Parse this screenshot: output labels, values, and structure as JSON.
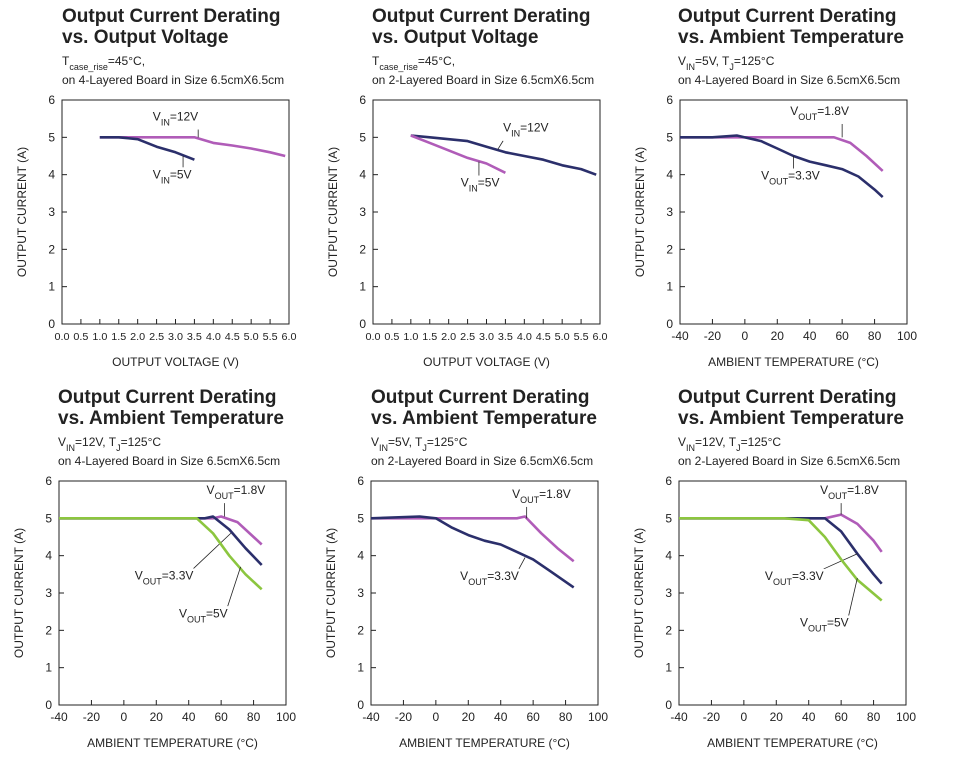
{
  "chart_data": [
    {
      "type": "line",
      "title": [
        "Output Current Derating",
        "vs. Output Voltage"
      ],
      "subtitle": [
        [
          "T",
          "case_rise",
          "=45°C,"
        ],
        "on 4-Layered Board in Size 6.5cmX6.5cm"
      ],
      "xlabel": "OUTPUT VOLTAGE (V)",
      "ylabel": "OUTPUT CURRENT (A)",
      "xlim": [
        0,
        6
      ],
      "ylim": [
        0,
        6
      ],
      "xticks": [
        {
          "value": 0,
          "label": "0.0"
        },
        0.5,
        {
          "value": 1,
          "label": "1.0"
        },
        1.5,
        {
          "value": 2,
          "label": "2.0"
        },
        2.5,
        {
          "value": 3,
          "label": "3.0"
        },
        3.5,
        {
          "value": 4,
          "label": "4.0"
        },
        4.5,
        {
          "value": 5,
          "label": "5.0"
        },
        5.5,
        {
          "value": 6,
          "label": "6.0"
        }
      ],
      "yticks": [
        0,
        1,
        2,
        3,
        4,
        5,
        6
      ],
      "series": [
        {
          "name": [
            "V",
            "IN",
            "=12V"
          ],
          "color": "#b05cb8",
          "x": [
            1.0,
            1.5,
            2.0,
            2.5,
            3.0,
            3.5,
            4.0,
            4.5,
            5.0,
            5.5,
            5.9
          ],
          "values": [
            5,
            5,
            5,
            5,
            5,
            5,
            4.85,
            4.78,
            4.7,
            4.6,
            4.5
          ]
        },
        {
          "name": [
            "V",
            "IN",
            "=5V"
          ],
          "color": "#2b2f6b",
          "x": [
            1.0,
            1.5,
            2.0,
            2.5,
            3.0,
            3.5
          ],
          "values": [
            5,
            5,
            4.95,
            4.75,
            4.6,
            4.4
          ]
        }
      ]
    },
    {
      "type": "line",
      "title": [
        "Output Current Derating",
        "vs. Output Voltage"
      ],
      "subtitle": [
        [
          "T",
          "case_rise",
          "=45°C,"
        ],
        "on 2-Layered Board in Size 6.5cmX6.5cm"
      ],
      "xlabel": "OUTPUT VOLTAGE (V)",
      "ylabel": "OUTPUT CURRENT (A)",
      "xlim": [
        0,
        6
      ],
      "ylim": [
        0,
        6
      ],
      "xticks": [
        {
          "value": 0,
          "label": "0.0"
        },
        0.5,
        {
          "value": 1,
          "label": "1.0"
        },
        1.5,
        {
          "value": 2,
          "label": "2.0"
        },
        2.5,
        {
          "value": 3,
          "label": "3.0"
        },
        3.5,
        {
          "value": 4,
          "label": "4.0"
        },
        4.5,
        {
          "value": 5,
          "label": "5.0"
        },
        5.5,
        {
          "value": 6,
          "label": "6.0"
        }
      ],
      "yticks": [
        0,
        1,
        2,
        3,
        4,
        5,
        6
      ],
      "series": [
        {
          "name": [
            "V",
            "IN",
            "=12V"
          ],
          "color": "#2b2f6b",
          "x": [
            1.0,
            1.5,
            2.0,
            2.5,
            3.0,
            3.5,
            4.0,
            4.5,
            5.0,
            5.5,
            5.9
          ],
          "values": [
            5.05,
            5.0,
            4.95,
            4.9,
            4.75,
            4.6,
            4.5,
            4.4,
            4.25,
            4.15,
            4.0
          ]
        },
        {
          "name": [
            "V",
            "IN",
            "=5V"
          ],
          "color": "#b05cb8",
          "x": [
            1.0,
            1.5,
            2.0,
            2.5,
            3.0,
            3.5
          ],
          "values": [
            5.05,
            4.85,
            4.65,
            4.45,
            4.3,
            4.05
          ]
        }
      ]
    },
    {
      "type": "line",
      "title": [
        "Output Current Derating",
        "vs. Ambient Temperature"
      ],
      "subtitle": [
        [
          "V",
          "IN",
          "=5V, T",
          "J",
          "=125°C"
        ],
        "on 4-Layered Board in Size 6.5cmX6.5cm"
      ],
      "xlabel": "AMBIENT TEMPERATURE (°C)",
      "ylabel": "OUTPUT CURRENT (A)",
      "xlim": [
        -40,
        100
      ],
      "ylim": [
        0,
        6
      ],
      "xticks": [
        -40,
        -20,
        0,
        20,
        40,
        60,
        80,
        100
      ],
      "yticks": [
        0,
        1,
        2,
        3,
        4,
        5,
        6
      ],
      "series": [
        {
          "name": [
            "V",
            "OUT",
            "=1.8V"
          ],
          "color": "#b05cb8",
          "x": [
            -40,
            0,
            55,
            65,
            75,
            85
          ],
          "values": [
            5,
            5,
            5,
            4.85,
            4.5,
            4.1
          ]
        },
        {
          "name": [
            "V",
            "OUT",
            "=3.3V"
          ],
          "color": "#2b2f6b",
          "x": [
            -40,
            -20,
            -5,
            10,
            20,
            30,
            40,
            50,
            60,
            70,
            80,
            85
          ],
          "values": [
            5,
            5,
            5.05,
            4.9,
            4.7,
            4.5,
            4.35,
            4.25,
            4.15,
            3.95,
            3.6,
            3.4
          ]
        }
      ]
    },
    {
      "type": "line",
      "title": [
        "Output Current Derating",
        "vs. Ambient Temperature"
      ],
      "subtitle": [
        [
          "V",
          "IN",
          "=12V, T",
          "J",
          "=125°C"
        ],
        "on 4-Layered Board in Size 6.5cmX6.5cm"
      ],
      "xlabel": "AMBIENT TEMPERATURE (°C)",
      "ylabel": "OUTPUT CURRENT (A)",
      "xlim": [
        -40,
        100
      ],
      "ylim": [
        0,
        6
      ],
      "xticks": [
        -40,
        -20,
        0,
        20,
        40,
        60,
        80,
        100
      ],
      "yticks": [
        0,
        1,
        2,
        3,
        4,
        5,
        6
      ],
      "series": [
        {
          "name": [
            "V",
            "OUT",
            "=1.8V"
          ],
          "color": "#b05cb8",
          "x": [
            -40,
            55,
            60,
            70,
            80,
            85
          ],
          "values": [
            5,
            5,
            5.05,
            4.9,
            4.5,
            4.3
          ]
        },
        {
          "name": [
            "V",
            "OUT",
            "=3.3V"
          ],
          "color": "#2b2f6b",
          "x": [
            -40,
            50,
            55,
            65,
            75,
            85
          ],
          "values": [
            5,
            5,
            5.05,
            4.7,
            4.2,
            3.75
          ]
        },
        {
          "name": [
            "V",
            "OUT",
            "=5V"
          ],
          "color": "#8cc63f",
          "x": [
            -40,
            45,
            55,
            65,
            75,
            85
          ],
          "values": [
            5,
            5,
            4.6,
            4.0,
            3.5,
            3.1
          ]
        }
      ]
    },
    {
      "type": "line",
      "title": [
        "Output Current Derating",
        "vs. Ambient Temperature"
      ],
      "subtitle": [
        [
          "V",
          "IN",
          "=5V, T",
          "J",
          "=125°C"
        ],
        "on 2-Layered Board in Size 6.5cmX6.5cm"
      ],
      "xlabel": "AMBIENT TEMPERATURE (°C)",
      "ylabel": "OUTPUT CURRENT (A)",
      "xlim": [
        -40,
        100
      ],
      "ylim": [
        0,
        6
      ],
      "xticks": [
        -40,
        -20,
        0,
        20,
        40,
        60,
        80,
        100
      ],
      "yticks": [
        0,
        1,
        2,
        3,
        4,
        5,
        6
      ],
      "series": [
        {
          "name": [
            "V",
            "OUT",
            "=1.8V"
          ],
          "color": "#b05cb8",
          "x": [
            -40,
            50,
            55,
            65,
            75,
            85
          ],
          "values": [
            5,
            5,
            5.05,
            4.6,
            4.2,
            3.85
          ]
        },
        {
          "name": [
            "V",
            "OUT",
            "=3.3V"
          ],
          "color": "#2b2f6b",
          "x": [
            -40,
            -10,
            0,
            10,
            20,
            30,
            40,
            50,
            60,
            70,
            85
          ],
          "values": [
            5,
            5.05,
            5,
            4.75,
            4.55,
            4.4,
            4.3,
            4.1,
            3.9,
            3.6,
            3.15
          ]
        }
      ]
    },
    {
      "type": "line",
      "title": [
        "Output Current Derating",
        "vs. Ambient Temperature"
      ],
      "subtitle": [
        [
          "V",
          "IN",
          "=12V, T",
          "J",
          "=125°C"
        ],
        "on 2-Layered Board in Size 6.5cmX6.5cm"
      ],
      "xlabel": "AMBIENT TEMPERATURE (°C)",
      "ylabel": "OUTPUT CURRENT (A)",
      "xlim": [
        -40,
        100
      ],
      "ylim": [
        0,
        6
      ],
      "xticks": [
        -40,
        -20,
        0,
        20,
        40,
        60,
        80,
        100
      ],
      "yticks": [
        0,
        1,
        2,
        3,
        4,
        5,
        6
      ],
      "series": [
        {
          "name": [
            "V",
            "OUT",
            "=1.8V"
          ],
          "color": "#b05cb8",
          "x": [
            -40,
            50,
            60,
            70,
            80,
            85
          ],
          "values": [
            5,
            5,
            5.1,
            4.85,
            4.4,
            4.1
          ]
        },
        {
          "name": [
            "V",
            "OUT",
            "=3.3V"
          ],
          "color": "#2b2f6b",
          "x": [
            -40,
            40,
            50,
            60,
            70,
            80,
            85
          ],
          "values": [
            5,
            5,
            5.0,
            4.65,
            4.05,
            3.5,
            3.25
          ]
        },
        {
          "name": [
            "V",
            "OUT",
            "=5V"
          ],
          "color": "#8cc63f",
          "x": [
            -40,
            25,
            40,
            50,
            60,
            70,
            85
          ],
          "values": [
            5,
            5,
            4.95,
            4.5,
            3.9,
            3.35,
            2.8
          ]
        }
      ]
    }
  ]
}
